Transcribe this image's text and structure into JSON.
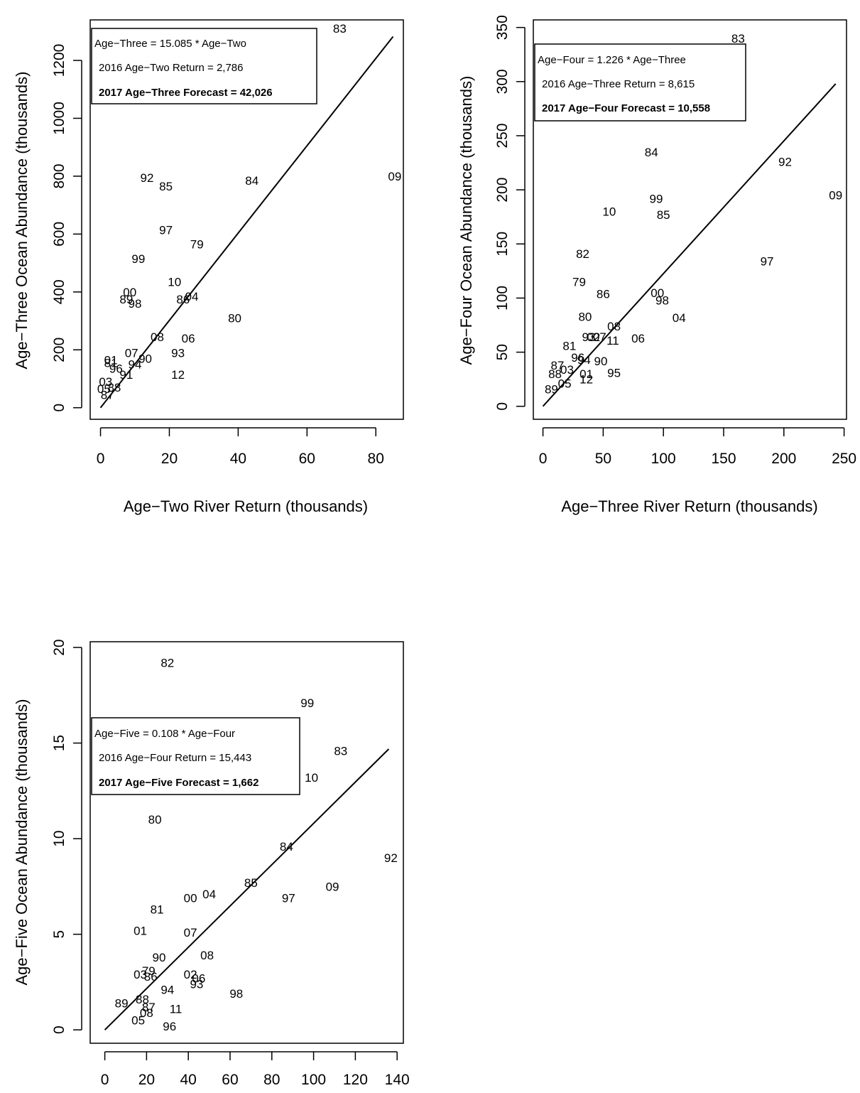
{
  "chart_data": [
    {
      "type": "scatter",
      "xlabel": "Age−Two River Return (thousands)",
      "ylabel": "Age−Three Ocean Abundance (thousands)",
      "xlim": [
        -3,
        88
      ],
      "ylim": [
        -40,
        1340
      ],
      "xticks": [
        "0",
        "20",
        "40",
        "60",
        "80"
      ],
      "xtick_values": [
        0,
        20,
        40,
        60,
        80
      ],
      "yticks": [
        "0",
        "200",
        "400",
        "600",
        "800",
        "1000",
        "1200"
      ],
      "ytick_values": [
        0,
        200,
        400,
        600,
        800,
        1000,
        1200
      ],
      "legend": [
        "Age−Three = 15.085 * Age−Two",
        "2016 Age−Two Return = 2,786",
        "2017 Age−Three Forecast = 42,026"
      ],
      "legend_position": "top-left",
      "fit_line": {
        "slope": 15.085,
        "x_range": [
          0,
          85
        ]
      },
      "points": [
        {
          "label": "83",
          "x": 69.5,
          "y": 1310
        },
        {
          "label": "09",
          "x": 85.5,
          "y": 800
        },
        {
          "label": "84",
          "x": 44,
          "y": 785
        },
        {
          "label": "92",
          "x": 13.5,
          "y": 795
        },
        {
          "label": "85",
          "x": 19,
          "y": 765
        },
        {
          "label": "97",
          "x": 19,
          "y": 615
        },
        {
          "label": "79",
          "x": 28,
          "y": 565
        },
        {
          "label": "99",
          "x": 11,
          "y": 515
        },
        {
          "label": "10",
          "x": 21.5,
          "y": 435
        },
        {
          "label": "00",
          "x": 8.5,
          "y": 400
        },
        {
          "label": "89",
          "x": 7.5,
          "y": 375
        },
        {
          "label": "98",
          "x": 10,
          "y": 360
        },
        {
          "label": "86",
          "x": 24,
          "y": 375
        },
        {
          "label": "04",
          "x": 26.5,
          "y": 385
        },
        {
          "label": "80",
          "x": 39,
          "y": 310
        },
        {
          "label": "06",
          "x": 25.5,
          "y": 240
        },
        {
          "label": "08",
          "x": 16.5,
          "y": 245
        },
        {
          "label": "93",
          "x": 22.5,
          "y": 190
        },
        {
          "label": "12",
          "x": 22.5,
          "y": 115
        },
        {
          "label": "90",
          "x": 13,
          "y": 170
        },
        {
          "label": "07",
          "x": 9,
          "y": 190
        },
        {
          "label": "01",
          "x": 3,
          "y": 165
        },
        {
          "label": "81",
          "x": 3,
          "y": 155
        },
        {
          "label": "94",
          "x": 10,
          "y": 150
        },
        {
          "label": "96",
          "x": 4.5,
          "y": 135
        },
        {
          "label": "91",
          "x": 7.5,
          "y": 115
        },
        {
          "label": "03",
          "x": 1.5,
          "y": 90
        },
        {
          "label": "88",
          "x": 4,
          "y": 70
        },
        {
          "label": "05",
          "x": 1,
          "y": 65
        },
        {
          "label": "87",
          "x": 2,
          "y": 45
        }
      ]
    },
    {
      "type": "scatter",
      "xlabel": "Age−Three River Return (thousands)",
      "ylabel": "Age−Four Ocean Abundance (thousands)",
      "xlim": [
        -8,
        252
      ],
      "ylim": [
        -12,
        357
      ],
      "xticks": [
        "0",
        "50",
        "100",
        "150",
        "200",
        "250"
      ],
      "xtick_values": [
        0,
        50,
        100,
        150,
        200,
        250
      ],
      "yticks": [
        "0",
        "50",
        "100",
        "150",
        "200",
        "250",
        "300",
        "350"
      ],
      "ytick_values": [
        0,
        50,
        100,
        150,
        200,
        250,
        300,
        350
      ],
      "legend": [
        "Age−Four = 1.226 * Age−Three",
        "2016 Age−Three Return = 8,615",
        "2017 Age−Four Forecast = 10,558"
      ],
      "legend_position": "top-left",
      "fit_line": {
        "slope": 1.226,
        "x_range": [
          0,
          243
        ]
      },
      "points": [
        {
          "label": "83",
          "x": 162,
          "y": 340
        },
        {
          "label": "84",
          "x": 90,
          "y": 235
        },
        {
          "label": "92",
          "x": 201,
          "y": 226
        },
        {
          "label": "09",
          "x": 243,
          "y": 195
        },
        {
          "label": "99",
          "x": 94,
          "y": 192
        },
        {
          "label": "10",
          "x": 55,
          "y": 180
        },
        {
          "label": "85",
          "x": 100,
          "y": 177
        },
        {
          "label": "82",
          "x": 33,
          "y": 141
        },
        {
          "label": "97",
          "x": 186,
          "y": 134
        },
        {
          "label": "79",
          "x": 30,
          "y": 115
        },
        {
          "label": "86",
          "x": 50,
          "y": 104
        },
        {
          "label": "00",
          "x": 95,
          "y": 105
        },
        {
          "label": "98",
          "x": 99,
          "y": 98
        },
        {
          "label": "80",
          "x": 35,
          "y": 83
        },
        {
          "label": "04",
          "x": 113,
          "y": 82
        },
        {
          "label": "08",
          "x": 59,
          "y": 74
        },
        {
          "label": "06",
          "x": 79,
          "y": 63
        },
        {
          "label": "11",
          "x": 58,
          "y": 61
        },
        {
          "label": "93",
          "x": 38,
          "y": 64
        },
        {
          "label": "02",
          "x": 42,
          "y": 64
        },
        {
          "label": "07",
          "x": 47,
          "y": 64
        },
        {
          "label": "81",
          "x": 22,
          "y": 56
        },
        {
          "label": "96",
          "x": 29,
          "y": 45
        },
        {
          "label": "94",
          "x": 34,
          "y": 43
        },
        {
          "label": "90",
          "x": 48,
          "y": 42
        },
        {
          "label": "87",
          "x": 12,
          "y": 38
        },
        {
          "label": "03",
          "x": 20,
          "y": 34
        },
        {
          "label": "88",
          "x": 10,
          "y": 30
        },
        {
          "label": "01",
          "x": 36,
          "y": 30
        },
        {
          "label": "95",
          "x": 59,
          "y": 31
        },
        {
          "label": "12",
          "x": 36,
          "y": 25
        },
        {
          "label": "05",
          "x": 18,
          "y": 21
        },
        {
          "label": "89",
          "x": 7,
          "y": 16
        }
      ]
    },
    {
      "type": "scatter",
      "xlabel": "",
      "ylabel": "Age−Five Ocean Abundance (thousands)",
      "xlim": [
        -7,
        143
      ],
      "ylim": [
        -0.7,
        20.3
      ],
      "xticks": [
        "0",
        "20",
        "40",
        "60",
        "80",
        "100",
        "120",
        "140"
      ],
      "xtick_values": [
        0,
        20,
        40,
        60,
        80,
        100,
        120,
        140
      ],
      "yticks": [
        "0",
        "5",
        "10",
        "15",
        "20"
      ],
      "ytick_values": [
        0,
        5,
        10,
        15,
        20
      ],
      "legend": [
        "Age−Five = 0.108 * Age−Four",
        "2016 Age−Four Return = 15,443",
        "2017 Age−Five Forecast = 1,662"
      ],
      "legend_position": "top-left",
      "fit_line": {
        "slope": 0.108,
        "x_range": [
          0,
          136
        ]
      },
      "points": [
        {
          "label": "82",
          "x": 30,
          "y": 19.2
        },
        {
          "label": "99",
          "x": 97,
          "y": 17.1
        },
        {
          "label": "83",
          "x": 113,
          "y": 14.6
        },
        {
          "label": "10",
          "x": 99,
          "y": 13.2
        },
        {
          "label": "80",
          "x": 24,
          "y": 11.0
        },
        {
          "label": "84",
          "x": 87,
          "y": 9.6
        },
        {
          "label": "92",
          "x": 137,
          "y": 9.0
        },
        {
          "label": "85",
          "x": 70,
          "y": 7.7
        },
        {
          "label": "09",
          "x": 109,
          "y": 7.5
        },
        {
          "label": "97",
          "x": 88,
          "y": 6.9
        },
        {
          "label": "00",
          "x": 41,
          "y": 6.9
        },
        {
          "label": "04",
          "x": 50,
          "y": 7.1
        },
        {
          "label": "81",
          "x": 25,
          "y": 6.3
        },
        {
          "label": "01",
          "x": 17,
          "y": 5.2
        },
        {
          "label": "07",
          "x": 41,
          "y": 5.1
        },
        {
          "label": "90",
          "x": 26,
          "y": 3.8
        },
        {
          "label": "08",
          "x": 49,
          "y": 3.9
        },
        {
          "label": "79",
          "x": 21,
          "y": 3.1
        },
        {
          "label": "03",
          "x": 17,
          "y": 2.9
        },
        {
          "label": "86",
          "x": 22,
          "y": 2.8
        },
        {
          "label": "02",
          "x": 41,
          "y": 2.9
        },
        {
          "label": "06",
          "x": 45,
          "y": 2.7
        },
        {
          "label": "93",
          "x": 44,
          "y": 2.4
        },
        {
          "label": "94",
          "x": 30,
          "y": 2.1
        },
        {
          "label": "98",
          "x": 63,
          "y": 1.9
        },
        {
          "label": "89",
          "x": 8,
          "y": 1.4
        },
        {
          "label": "88",
          "x": 18,
          "y": 1.6
        },
        {
          "label": "87",
          "x": 21,
          "y": 1.2
        },
        {
          "label": "11",
          "x": 34,
          "y": 1.1
        },
        {
          "label": "08b",
          "x": 20,
          "y": 0.9
        },
        {
          "label": "05",
          "x": 16,
          "y": 0.5
        },
        {
          "label": "96",
          "x": 31,
          "y": 0.2
        }
      ]
    }
  ]
}
